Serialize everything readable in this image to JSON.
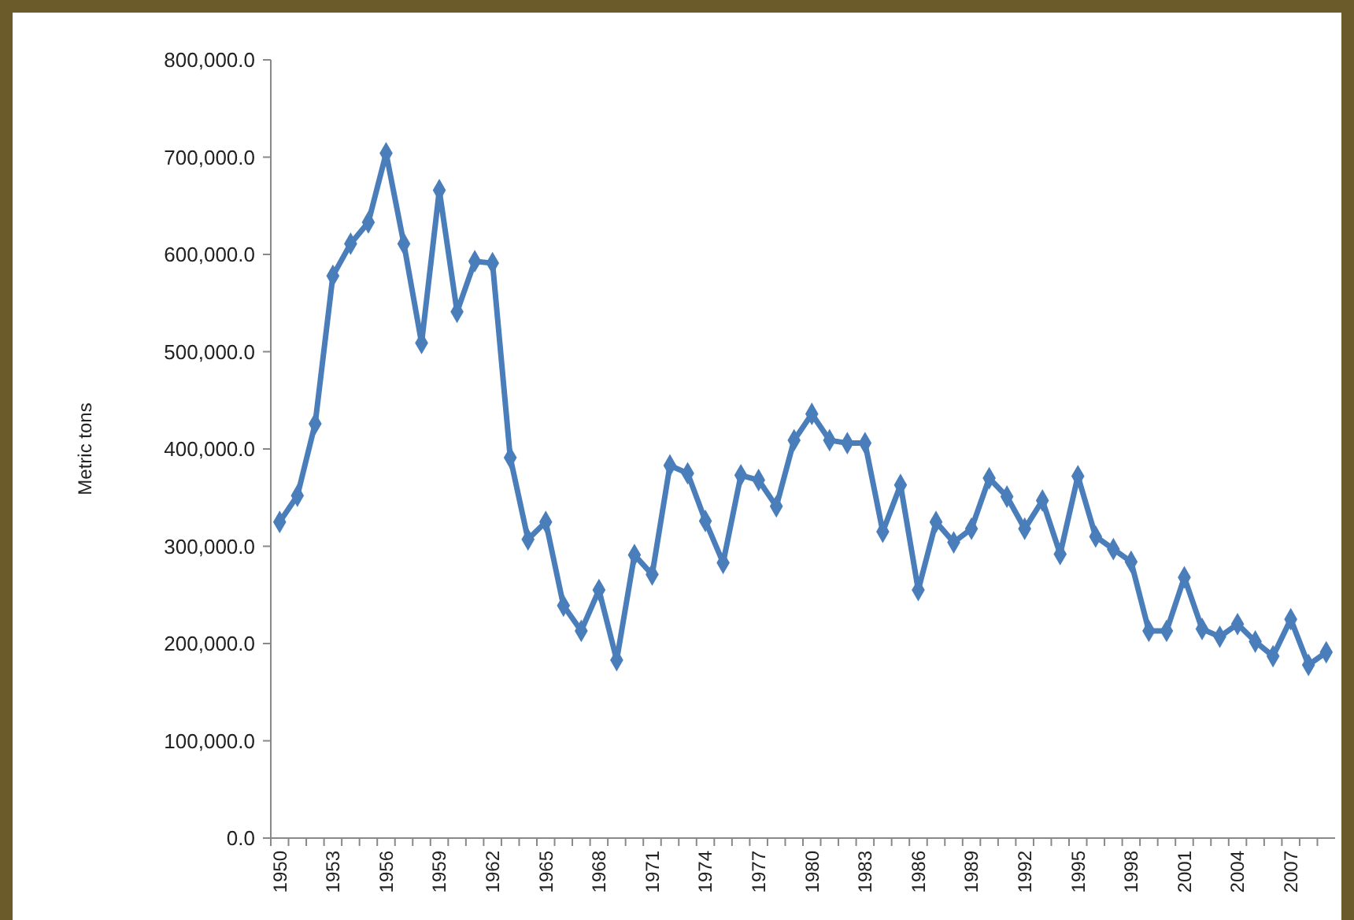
{
  "chart_data": {
    "type": "line",
    "ylabel": "Metric tons",
    "categories": [
      "1950",
      null,
      null,
      "1953",
      null,
      null,
      "1956",
      null,
      null,
      "1959",
      null,
      null,
      "1962",
      null,
      null,
      "1965",
      null,
      null,
      "1968",
      null,
      null,
      "1971",
      null,
      null,
      "1974",
      null,
      null,
      "1977",
      null,
      null,
      "1980",
      null,
      null,
      "1983",
      null,
      null,
      "1986",
      null,
      null,
      "1989",
      null,
      null,
      "1992",
      null,
      null,
      "1995",
      null,
      null,
      "1998",
      null,
      null,
      "2001",
      null,
      null,
      "2004",
      null,
      null,
      "2007",
      null,
      null
    ],
    "series": [
      {
        "color": "#4a7ebb",
        "values": [
          325000,
          352000,
          426000,
          578000,
          611000,
          633000,
          704000,
          611000,
          509000,
          666000,
          541000,
          593000,
          591000,
          391000,
          307000,
          325000,
          239000,
          213000,
          255000,
          183000,
          291000,
          271000,
          383000,
          375000,
          326000,
          283000,
          373000,
          368000,
          341000,
          409000,
          436000,
          409000,
          406000,
          406000,
          315000,
          363000,
          255000,
          325000,
          304000,
          318000,
          370000,
          351000,
          318000,
          347000,
          292000,
          372000,
          310000,
          297000,
          284000,
          213000,
          213000,
          268000,
          215000,
          207000,
          220000,
          202000,
          187000,
          225000,
          178000,
          191000
        ]
      }
    ],
    "ylim": [
      0,
      800000
    ],
    "yticks": [
      {
        "value": 0,
        "label": "0.0"
      },
      {
        "value": 100000,
        "label": "100,000.0"
      },
      {
        "value": 200000,
        "label": "200,000.0"
      },
      {
        "value": 300000,
        "label": "300,000.0"
      },
      {
        "value": 400000,
        "label": "400,000.0"
      },
      {
        "value": 500000,
        "label": "500,000.0"
      },
      {
        "value": 600000,
        "label": "600,000.0"
      },
      {
        "value": 700000,
        "label": "700,000.0"
      },
      {
        "value": 800000,
        "label": "800,000.0"
      }
    ],
    "grid": false,
    "marker": "diamond",
    "line_style": "solid"
  }
}
